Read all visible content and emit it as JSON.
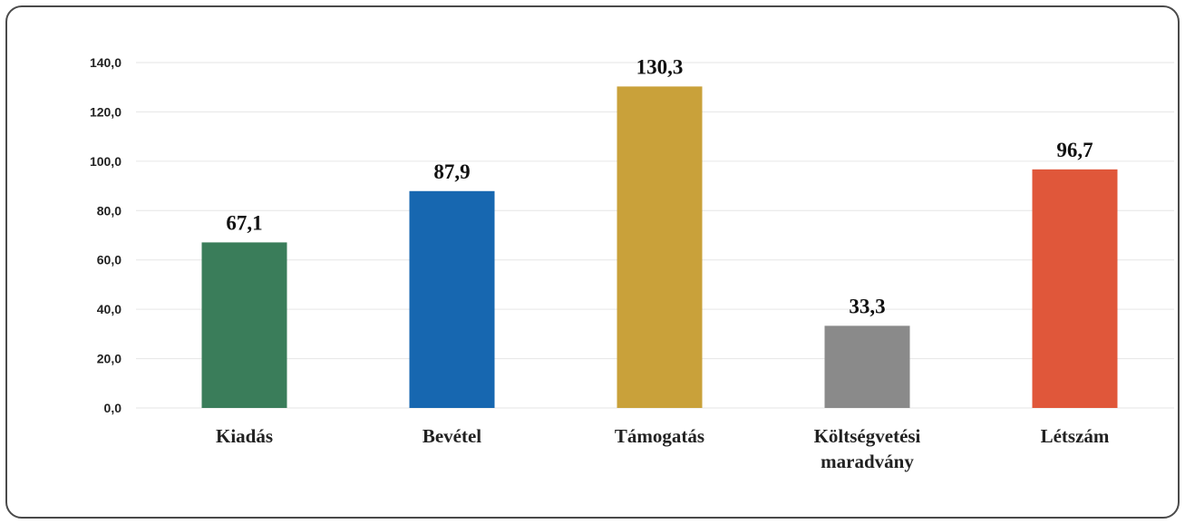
{
  "chart_data": {
    "type": "bar",
    "categories": [
      [
        "Kiadás"
      ],
      [
        "Bevétel"
      ],
      [
        "Támogatás"
      ],
      [
        "Költségvetési",
        "maradvány"
      ],
      [
        "Létszám"
      ]
    ],
    "values": [
      67.1,
      87.9,
      130.3,
      33.3,
      96.7
    ],
    "value_labels": [
      "67,1",
      "87,9",
      "130,3",
      "33,3",
      "96,7"
    ],
    "colors": [
      "#3a7d5a",
      "#1767b0",
      "#c9a13a",
      "#8a8a8a",
      "#e0573a"
    ],
    "yticks": [
      "0,0",
      "20,0",
      "40,0",
      "60,0",
      "80,0",
      "100,0",
      "120,0",
      "140,0"
    ],
    "ylim": [
      0,
      140
    ],
    "grid": true
  }
}
